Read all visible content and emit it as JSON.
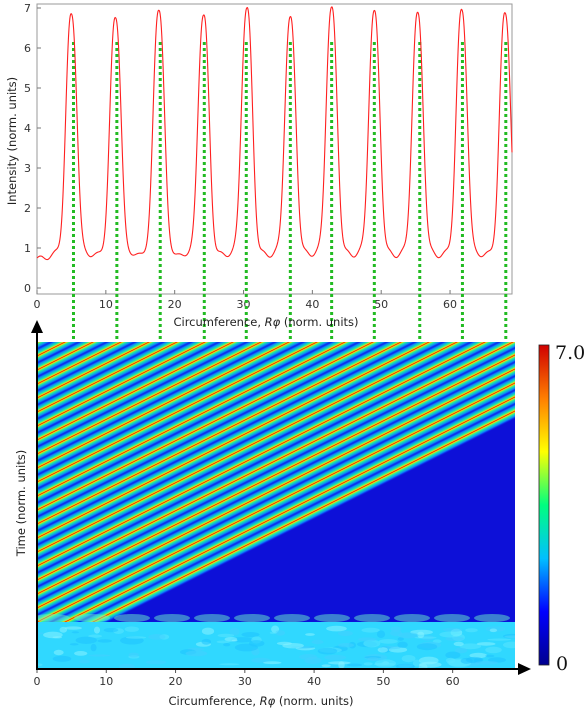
{
  "chart_data": [
    {
      "type": "line",
      "xlabel_text": "Circumference, ",
      "xlabel_var": "Rφ",
      "xlabel_unit": " (norm. units)",
      "ylabel": "Intensity (norm. units)",
      "xlim": [
        0,
        69
      ],
      "ylim": [
        -0.15,
        7.1
      ],
      "x_ticks": [
        0,
        10,
        20,
        30,
        40,
        50,
        60
      ],
      "y_ticks": [
        0,
        1,
        2,
        3,
        4,
        5,
        6,
        7
      ],
      "series": [
        {
          "color": "#ff2020",
          "baseline": 0.75,
          "peaks": [
            {
              "x": 5.0,
              "y": 6.8
            },
            {
              "x": 11.4,
              "y": 6.75
            },
            {
              "x": 17.7,
              "y": 6.95
            },
            {
              "x": 24.2,
              "y": 6.8
            },
            {
              "x": 30.5,
              "y": 6.95
            },
            {
              "x": 36.8,
              "y": 6.7
            },
            {
              "x": 42.8,
              "y": 6.95
            },
            {
              "x": 49.0,
              "y": 6.85
            },
            {
              "x": 55.3,
              "y": 6.8
            },
            {
              "x": 61.7,
              "y": 6.9
            },
            {
              "x": 68.0,
              "y": 6.85
            }
          ]
        }
      ],
      "guide_lines": {
        "color": "#22bb22",
        "x": [
          5.3,
          11.6,
          17.9,
          24.3,
          30.4,
          36.8,
          42.8,
          49.0,
          55.6,
          61.8,
          68.1
        ],
        "top_value": 6.15
      }
    },
    {
      "type": "heatmap",
      "xlabel_text": "Circumference, ",
      "xlabel_var": "Rφ",
      "xlabel_unit": " (norm. units)",
      "ylabel": "Time (norm. units)",
      "xlim": [
        0,
        69
      ],
      "x_ticks": [
        0,
        10,
        20,
        30,
        40,
        50,
        60
      ],
      "stripe_count": 19,
      "colorscale": {
        "min": 0,
        "max": 7.0,
        "min_label": "0",
        "max_label": "7.0",
        "colors": [
          "#00008f",
          "#0000ff",
          "#00bfff",
          "#00ff7f",
          "#ffff00",
          "#ff7f00",
          "#d00000"
        ]
      }
    }
  ]
}
